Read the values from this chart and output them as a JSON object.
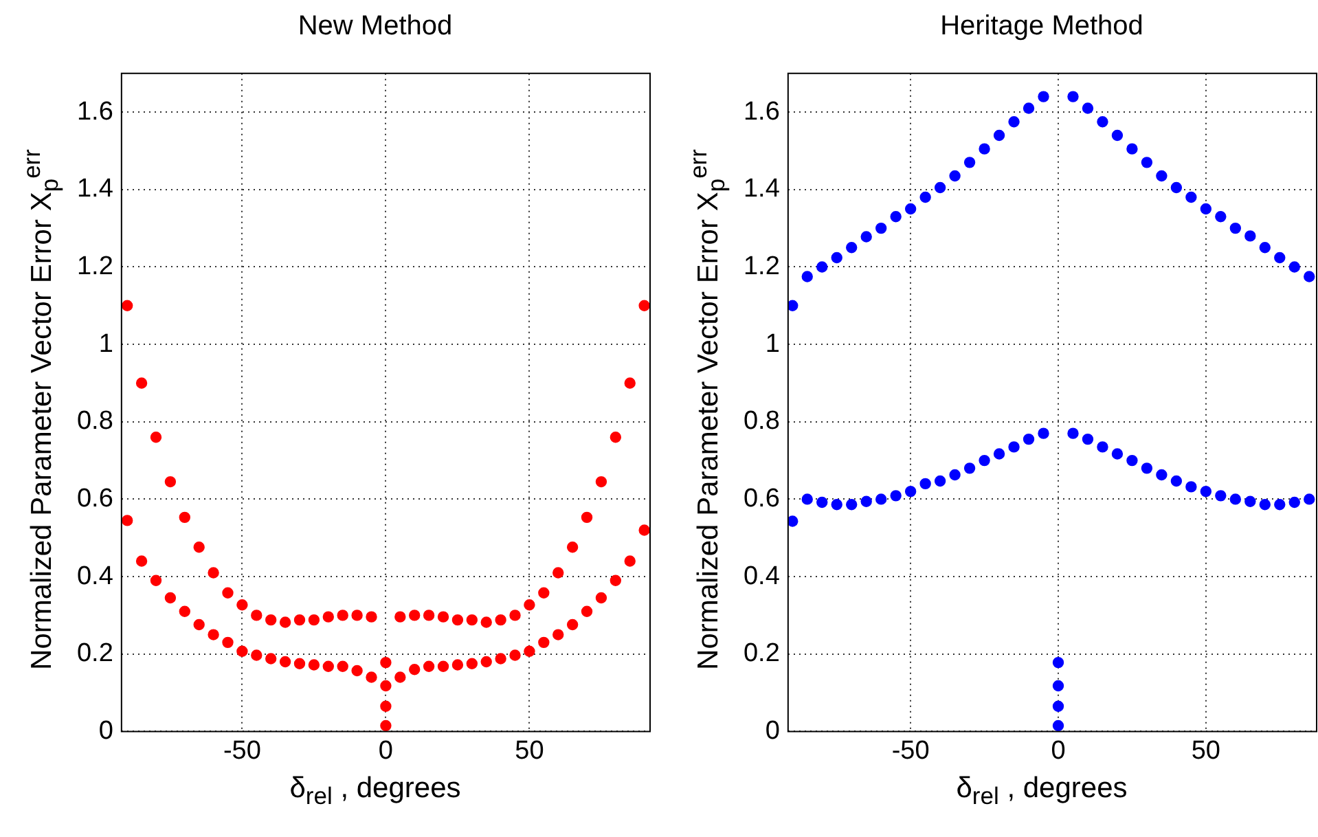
{
  "chart_data": [
    {
      "type": "scatter",
      "title": "New Method",
      "xlabel": "δ$_{rel}$ , degrees",
      "ylabel": "Normalized Parameter Vector Error X$_{p}$$^{err}$",
      "xlim": [
        -92,
        92
      ],
      "ylim": [
        0,
        1.7
      ],
      "xticks": [
        -50,
        0,
        50
      ],
      "yticks": [
        0,
        0.2,
        0.4,
        0.6,
        0.8,
        1,
        1.2,
        1.4,
        1.6
      ],
      "grid": true,
      "marker": "circle",
      "series": [
        {
          "color": "#ff0000",
          "x": [
            -90,
            -90,
            -85,
            -85,
            -80,
            -80,
            -75,
            -75,
            -70,
            -70,
            -65,
            -65,
            -60,
            -60,
            -55,
            -55,
            -50,
            -50,
            -45,
            -45,
            -40,
            -40,
            -35,
            -35,
            -30,
            -30,
            -25,
            -25,
            -20,
            -20,
            -15,
            -15,
            -10,
            -10,
            -5,
            -5,
            0,
            0,
            0,
            0,
            5,
            5,
            10,
            10,
            15,
            15,
            20,
            20,
            25,
            25,
            30,
            30,
            35,
            35,
            40,
            40,
            45,
            45,
            50,
            50,
            55,
            55,
            60,
            60,
            65,
            65,
            70,
            70,
            75,
            75,
            80,
            80,
            85,
            85,
            90,
            90
          ],
          "values": [
            1.1,
            0.545,
            0.9,
            0.44,
            0.76,
            0.39,
            0.645,
            0.345,
            0.553,
            0.31,
            0.476,
            0.276,
            0.41,
            0.25,
            0.358,
            0.23,
            0.327,
            0.207,
            0.3,
            0.197,
            0.288,
            0.188,
            0.282,
            0.18,
            0.288,
            0.175,
            0.288,
            0.172,
            0.296,
            0.168,
            0.3,
            0.168,
            0.3,
            0.157,
            0.296,
            0.14,
            0.178,
            0.118,
            0.065,
            0.015,
            0.296,
            0.14,
            0.3,
            0.16,
            0.3,
            0.168,
            0.296,
            0.168,
            0.288,
            0.172,
            0.288,
            0.175,
            0.282,
            0.18,
            0.288,
            0.188,
            0.3,
            0.197,
            0.327,
            0.207,
            0.358,
            0.23,
            0.41,
            0.25,
            0.476,
            0.276,
            0.553,
            0.31,
            0.645,
            0.345,
            0.76,
            0.39,
            0.9,
            0.44,
            1.1,
            0.52
          ]
        }
      ]
    },
    {
      "type": "scatter",
      "title": "Heritage Method",
      "xlabel": "δ$_{rel}$ , degrees",
      "ylabel": "Normalized Parameter Vector Error X$_{p}$$^{err}$",
      "xlim": [
        -91.5,
        87.5
      ],
      "ylim": [
        0,
        1.7
      ],
      "xticks": [
        -50,
        0,
        50
      ],
      "yticks": [
        0,
        0.2,
        0.4,
        0.6,
        0.8,
        1,
        1.2,
        1.4,
        1.6
      ],
      "grid": true,
      "marker": "circle",
      "series": [
        {
          "color": "#0000ff",
          "x": [
            -90,
            -90,
            -85,
            -85,
            -80,
            -80,
            -75,
            -75,
            -70,
            -70,
            -65,
            -65,
            -60,
            -60,
            -55,
            -55,
            -50,
            -50,
            -45,
            -45,
            -40,
            -40,
            -35,
            -35,
            -30,
            -30,
            -25,
            -25,
            -20,
            -20,
            -15,
            -15,
            -10,
            -10,
            -5,
            -5,
            0,
            0,
            0,
            0,
            5,
            5,
            10,
            10,
            15,
            15,
            20,
            20,
            25,
            25,
            30,
            30,
            35,
            35,
            40,
            40,
            45,
            45,
            50,
            50,
            55,
            55,
            60,
            60,
            65,
            65,
            70,
            70,
            75,
            75,
            80,
            80,
            85,
            85
          ],
          "values": [
            1.1,
            0.543,
            1.175,
            0.6,
            1.2,
            0.592,
            1.224,
            0.586,
            1.25,
            0.586,
            1.278,
            0.594,
            1.3,
            0.6,
            1.33,
            0.609,
            1.35,
            0.62,
            1.38,
            0.64,
            1.405,
            0.647,
            1.435,
            0.663,
            1.47,
            0.68,
            1.505,
            0.7,
            1.54,
            0.717,
            1.575,
            0.735,
            1.61,
            0.755,
            1.64,
            0.77,
            0.178,
            0.118,
            0.065,
            0.015,
            1.64,
            0.77,
            1.61,
            0.755,
            1.575,
            0.735,
            1.54,
            0.717,
            1.505,
            0.7,
            1.47,
            0.68,
            1.435,
            0.663,
            1.405,
            0.647,
            1.38,
            0.632,
            1.35,
            0.62,
            1.33,
            0.609,
            1.3,
            0.6,
            1.28,
            0.594,
            1.25,
            0.586,
            1.224,
            0.586,
            1.2,
            0.592,
            1.175,
            0.6
          ]
        }
      ]
    }
  ]
}
